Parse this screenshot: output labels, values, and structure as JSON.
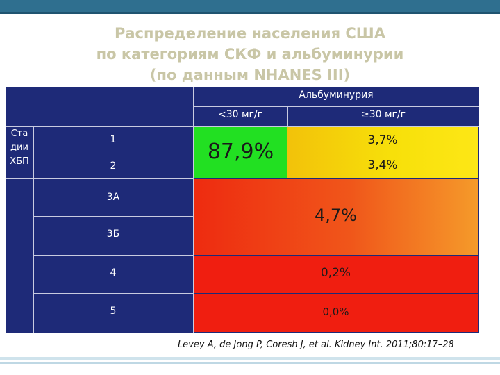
{
  "title": {
    "line1": "Распределение населения США",
    "line2": "по категориям СКФ и альбуминурии",
    "line3": "(по данным NHANES III)"
  },
  "table": {
    "albuminuria_header": "Альбуминурия",
    "col_lt30": "<30 мг/г",
    "col_ge30": "≥30 мг/г",
    "stage_header_line1": "Ста",
    "stage_header_line2": "дии",
    "stage_header_line3": "ХБП",
    "stages": [
      "1",
      "2",
      "3А",
      "3Б",
      "4",
      "5"
    ],
    "values": {
      "stage12_lt30": "87,9%",
      "stage1_ge30": "3,7%",
      "stage2_ge30": "3,4%",
      "stage3_all": "4,7%",
      "stage4_all": "0,2%",
      "stage5_all": "0,0%"
    }
  },
  "citation": "Levey A, de Jong P, Coresh J, et al. Kidney Int. 2011;80:17–28",
  "colors": {
    "title": "#c9c6a6",
    "table_bg": "#1e2a78",
    "green": "#22e022",
    "yellow": "#f7e00a",
    "red": "#f01e10",
    "top_bar": "#2f6f8f"
  }
}
